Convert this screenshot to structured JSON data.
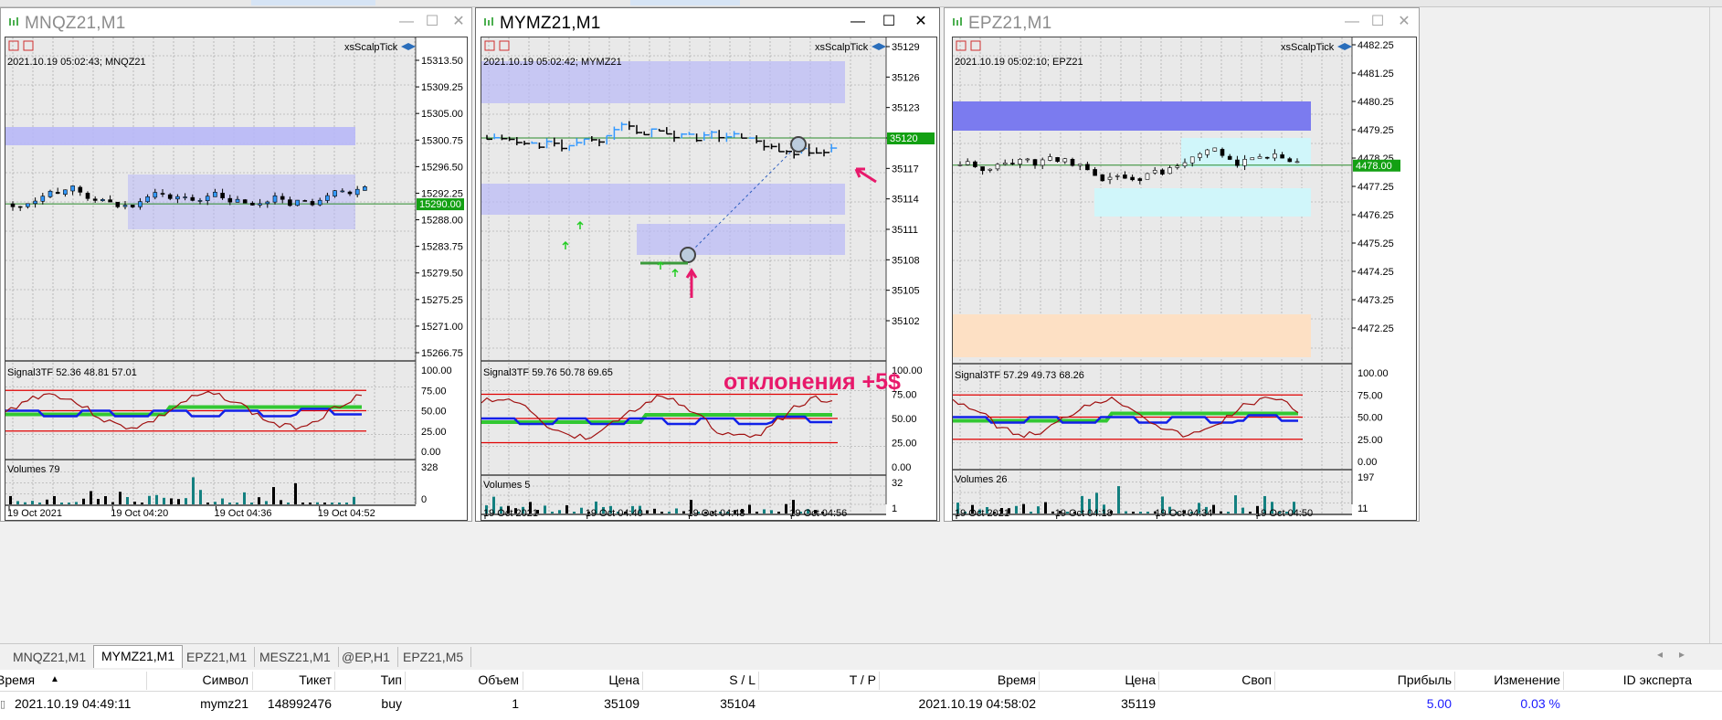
{
  "windows": [
    {
      "id": "mnq",
      "title": "MNQZ21,M1",
      "indicator_name": "xsScalpTick",
      "info": "2021.10.19 05:02:43; MNQZ21",
      "price_labels": [
        "15313.50",
        "15309.25",
        "15305.00",
        "15300.75",
        "15296.50",
        "15292.25",
        "15288.00",
        "15283.75",
        "15279.50",
        "15275.25",
        "15271.00",
        "15266.75"
      ],
      "current_price": "15290.00",
      "signal": {
        "label": "Signal3TF 52.36 48.81 57.01",
        "levels": [
          "100.00",
          "75.00",
          "50.00",
          "25.00",
          "0.00"
        ]
      },
      "volumes": {
        "label": "Volumes 79",
        "max": "328",
        "min": "0"
      },
      "time_labels": [
        "19 Oct 2021",
        "19 Oct 04:20",
        "19 Oct 04:36",
        "19 Oct 04:52"
      ]
    },
    {
      "id": "mym",
      "title": "MYMZ21,M1",
      "indicator_name": "xsScalpTick",
      "info": "2021.10.19 05:02:42; MYMZ21",
      "price_labels": [
        "35129",
        "35126",
        "35123",
        "35120",
        "35117",
        "35114",
        "35111",
        "35108",
        "35105",
        "35102"
      ],
      "current_price": "35120",
      "signal": {
        "label": "Signal3TF 59.76 50.78 69.65",
        "levels": [
          "100.00",
          "75.00",
          "50.00",
          "25.00",
          "0.00"
        ]
      },
      "volumes": {
        "label": "Volumes 5",
        "max": "32",
        "min": "1"
      },
      "time_labels": [
        "19 Oct 2021",
        "19 Oct 04:40",
        "19 Oct 04:48",
        "19 Oct 04:56"
      ]
    },
    {
      "id": "ep",
      "title": "EPZ21,M1",
      "indicator_name": "xsScalpTick",
      "info": "2021.10.19 05:02:10; EPZ21",
      "price_labels": [
        "4482.25",
        "4481.25",
        "4480.25",
        "4479.25",
        "4478.25",
        "4477.25",
        "4476.25",
        "4475.25",
        "4474.25",
        "4473.25",
        "4472.25"
      ],
      "current_price": "4478.00",
      "signal": {
        "label": "Signal3TF 57.29 49.73 68.26",
        "levels": [
          "100.00",
          "75.00",
          "50.00",
          "25.00",
          "0.00"
        ]
      },
      "volumes": {
        "label": "Volumes 26",
        "max": "197",
        "min": "11"
      },
      "time_labels": [
        "19 Oct 2021",
        "19 Oct 04:18",
        "19 Oct 04:34",
        "19 Oct 04:50"
      ]
    }
  ],
  "annotation": "отклонения +5$",
  "tabs": [
    "MNQZ21,M1",
    "MYMZ21,M1",
    "EPZ21,M1",
    "MESZ21,M1",
    "@EP,H1",
    "EPZ21,M5"
  ],
  "active_tab": 1,
  "trade_table": {
    "headers": [
      "Время",
      "Символ",
      "Тикет",
      "Тип",
      "Объем",
      "Цена",
      "S / L",
      "T / P",
      "Время",
      "Цена",
      "Своп",
      "Прибыль",
      "Изменение",
      "ID эксперта"
    ],
    "row": [
      "2021.10.19 04:49:11",
      "mymz21",
      "148992476",
      "buy",
      "1",
      "35109",
      "35104",
      "",
      "2021.10.19 04:58:02",
      "35119",
      "",
      "5.00",
      "0.03 %",
      ""
    ]
  },
  "colors": {
    "zone_blue": "#b8b8f7",
    "zone_strong": "#7b7bef",
    "zone_cyan": "#d0f6fa",
    "zone_peach": "#fde0c4",
    "price_line": "#2a8a2a",
    "price_tag": "#13a013",
    "signal_red": "#e00000",
    "signal_blue": "#1020e8",
    "signal_green": "#32c832",
    "signal_dark": "#a01010",
    "vol_teal": "#138080",
    "annotation": "#e8196b",
    "profit_blue": "#1a1aff"
  }
}
